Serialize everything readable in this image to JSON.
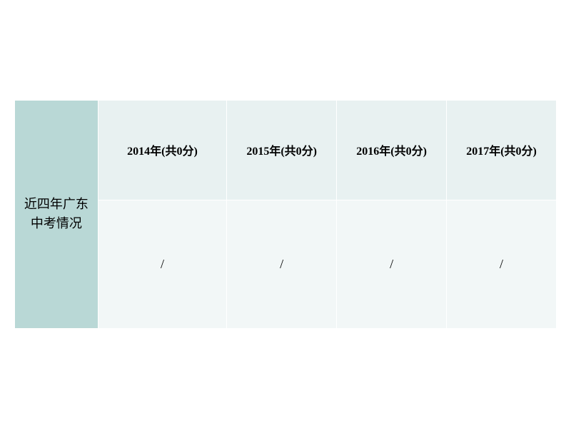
{
  "table": {
    "rowHeader": "近四年广东中考情况",
    "columns": [
      {
        "header": "2014年(共0分)",
        "value": "/"
      },
      {
        "header": "2015年(共0分)",
        "value": "/"
      },
      {
        "header": "2016年(共0分)",
        "value": "/"
      },
      {
        "header": "2017年(共0分)",
        "value": "/"
      }
    ],
    "colors": {
      "rowHeaderBg": "#b9d8d6",
      "yearHeaderBg": "#e8f1f1",
      "dataCellBg": "#f2f7f7",
      "borderColor": "#ffffff"
    }
  }
}
